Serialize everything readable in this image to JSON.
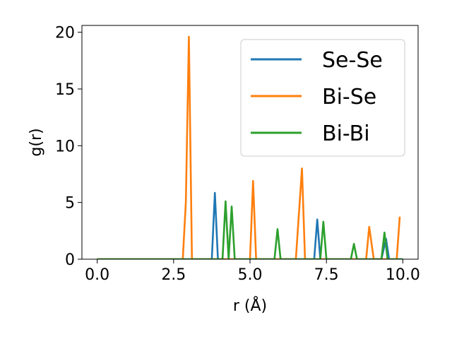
{
  "chart_data": {
    "type": "line",
    "title": "",
    "xlabel": "r (Å)",
    "ylabel": "g(r)",
    "xlim": [
      -0.5,
      10.5
    ],
    "ylim": [
      0,
      20.6
    ],
    "xticks": [
      "0.0",
      "2.5",
      "5.0",
      "7.5",
      "10.0"
    ],
    "yticks": [
      "0",
      "5",
      "10",
      "15",
      "20"
    ],
    "grid": false,
    "legend_position": "top-right",
    "series": [
      {
        "name": "Se-Se",
        "color": "#1f77b4",
        "x": [
          0,
          3.75,
          3.85,
          3.95,
          7.1,
          7.2,
          7.3,
          9.3,
          9.45,
          9.55,
          10.0
        ],
        "y": [
          0,
          0,
          5.85,
          0,
          0,
          3.5,
          0,
          0,
          1.8,
          0,
          0
        ]
      },
      {
        "name": "Bi-Se",
        "color": "#ff7f0e",
        "x": [
          0,
          2.8,
          2.9,
          3.0,
          3.1,
          5.0,
          5.1,
          5.2,
          6.5,
          6.7,
          6.8,
          8.8,
          8.9,
          9.05,
          9.8,
          9.9
        ],
        "y": [
          0,
          0,
          5.0,
          19.6,
          0,
          0,
          6.9,
          0,
          0,
          8.0,
          0,
          0,
          2.85,
          0,
          0,
          3.75
        ]
      },
      {
        "name": "Bi-Bi",
        "color": "#2ca02c",
        "x": [
          0,
          4.1,
          4.2,
          4.3,
          4.4,
          4.5,
          5.8,
          5.9,
          6.0,
          7.3,
          7.4,
          7.5,
          8.3,
          8.4,
          8.5,
          9.3,
          9.4,
          9.5,
          10.0
        ],
        "y": [
          0,
          0,
          5.1,
          0,
          4.65,
          0,
          0,
          2.65,
          0,
          0,
          3.3,
          0,
          0,
          1.35,
          0,
          0,
          2.35,
          0,
          0
        ]
      }
    ]
  }
}
